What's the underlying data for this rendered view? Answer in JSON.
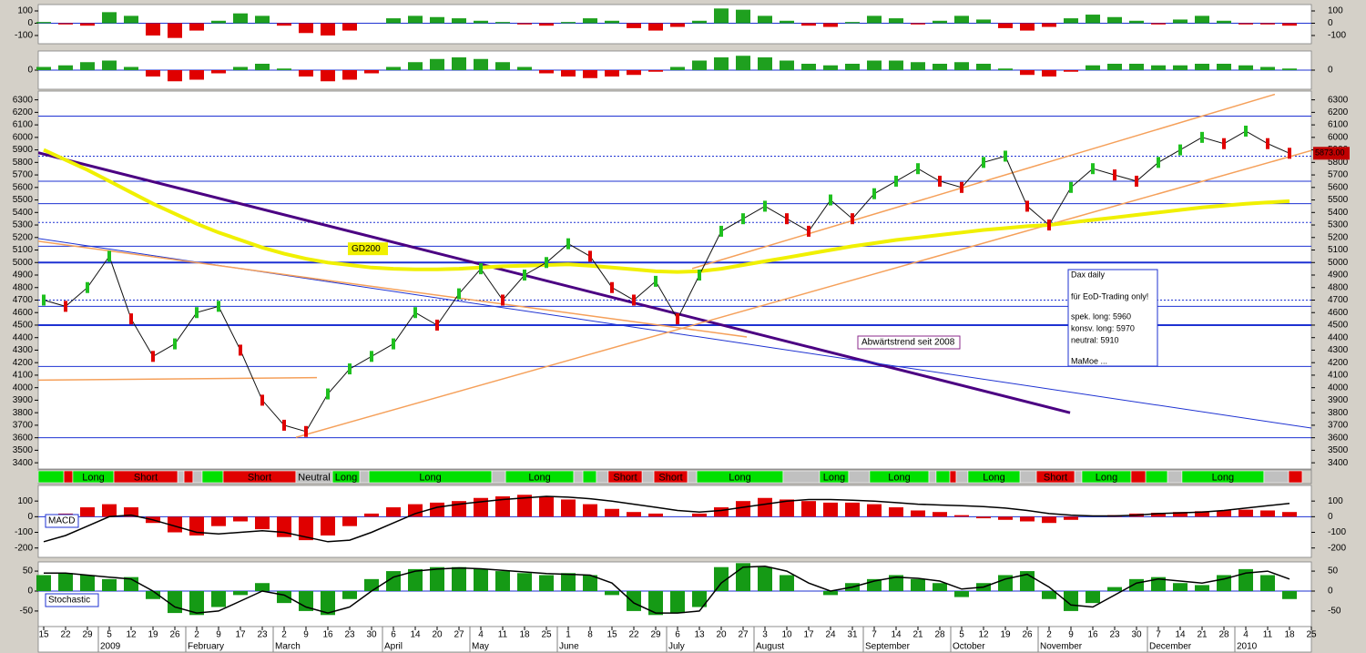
{
  "chart_data": [
    {
      "type": "bar",
      "ylim": [
        -167,
        152
      ],
      "yticks": [
        100,
        0,
        -100
      ],
      "values": [
        10,
        -10,
        -20,
        90,
        60,
        -100,
        -120,
        -60,
        20,
        80,
        60,
        -20,
        -80,
        -100,
        -60,
        0,
        40,
        60,
        50,
        40,
        20,
        10,
        -10,
        -20,
        10,
        40,
        20,
        -40,
        -60,
        -30,
        20,
        120,
        110,
        60,
        20,
        -20,
        -30,
        10,
        60,
        40,
        -10,
        20,
        60,
        30,
        -40,
        -60,
        -30,
        40,
        70,
        50,
        20,
        -10,
        30,
        60,
        20,
        -10,
        -10,
        -20,
        null
      ]
    },
    {
      "type": "bar",
      "ylim": [
        -60,
        60
      ],
      "yticks": [
        0
      ],
      "values": [
        10,
        15,
        25,
        30,
        10,
        -20,
        -35,
        -30,
        -10,
        10,
        20,
        5,
        -20,
        -35,
        -30,
        -10,
        10,
        25,
        35,
        40,
        35,
        25,
        10,
        -10,
        -20,
        -25,
        -20,
        -15,
        -5,
        10,
        30,
        40,
        45,
        40,
        30,
        20,
        15,
        20,
        30,
        30,
        25,
        20,
        25,
        20,
        5,
        -15,
        -20,
        -5,
        15,
        20,
        20,
        15,
        15,
        20,
        20,
        15,
        10,
        5,
        null
      ]
    },
    {
      "type": "line",
      "ylim": [
        3350,
        6370
      ],
      "yticks": [
        6300,
        6200,
        6100,
        6000,
        5900,
        5800,
        5700,
        5600,
        5500,
        5400,
        5300,
        5200,
        5100,
        5000,
        4900,
        4800,
        4700,
        4600,
        4500,
        4400,
        4300,
        4200,
        4100,
        4000,
        3900,
        3800,
        3700,
        3600,
        3500,
        3400
      ],
      "series": [
        {
          "color": "#111111",
          "values": [
            4700,
            4650,
            4800,
            5050,
            4550,
            4250,
            4350,
            4600,
            4650,
            4300,
            3900,
            3700,
            3650,
            3950,
            4150,
            4250,
            4350,
            4600,
            4500,
            4750,
            4950,
            4700,
            4900,
            5000,
            5150,
            5050,
            4800,
            4700,
            4850,
            4550,
            4900,
            5250,
            5350,
            5450,
            5350,
            5250,
            5500,
            5350,
            5550,
            5650,
            5750,
            5650,
            5600,
            5800,
            5850,
            5450,
            5300,
            5600,
            5750,
            5700,
            5650,
            5800,
            5900,
            6000,
            5950,
            6050,
            5950,
            5873,
            null
          ]
        },
        {
          "name": "GD200",
          "color": "#f0f000",
          "values": [
            5900,
            5820,
            5740,
            5650,
            5560,
            5470,
            5390,
            5310,
            5240,
            5180,
            5120,
            5070,
            5030,
            5000,
            4980,
            4960,
            4950,
            4945,
            4945,
            4950,
            4960,
            4970,
            4975,
            4980,
            4985,
            4975,
            4960,
            4945,
            4930,
            4925,
            4930,
            4950,
            4980,
            5010,
            5040,
            5070,
            5100,
            5130,
            5155,
            5180,
            5200,
            5220,
            5240,
            5260,
            5275,
            5290,
            5300,
            5320,
            5340,
            5360,
            5380,
            5400,
            5420,
            5440,
            5455,
            5470,
            5480,
            5490,
            null
          ]
        }
      ],
      "levels": [
        6170,
        5850,
        5650,
        5470,
        5320,
        5130,
        5000,
        4700,
        4650,
        4500,
        4170,
        3600
      ],
      "level_styles": [
        "solid",
        "dotted",
        "solid",
        "solid",
        "dotted",
        "solid",
        "thick",
        "dotted",
        "solid",
        "thick",
        "solid",
        "solid"
      ],
      "trendlines": [
        {
          "color": "#4b0082",
          "x": [
            -0.25,
            46.96
          ],
          "y": [
            5877,
            3800
          ]
        },
        {
          "color": "#1e32d2",
          "x": [
            -0.25,
            58.6
          ],
          "y": [
            5192,
            3662
          ]
        },
        {
          "color": "#f5a05a",
          "x": [
            11.54,
            58.83
          ],
          "y": [
            3603,
            5936
          ]
        },
        {
          "color": "#f5a05a",
          "x": [
            29.67,
            56.33
          ],
          "y": [
            4952,
            6344
          ]
        },
        {
          "color": "#f5a05a",
          "x": [
            -0.25,
            32.17
          ],
          "y": [
            5170,
            4405
          ]
        },
        {
          "color": "#f5a05a",
          "x": [
            -0.25,
            12.5
          ],
          "y": [
            4060,
            4080
          ]
        }
      ],
      "annotation": "Abwärtstrend seit 2008",
      "info_box": [
        "Dax daily",
        "für EoD-Trading only!",
        "spek. long: 5960",
        "konsv. long: 5970",
        "neutral: 5910",
        "MaMoe ..."
      ],
      "last_price": 5873,
      "last_price_label": "5873.00"
    },
    {
      "type": "signal",
      "starts": [
        -0.25,
        0.92,
        1.33,
        3.21,
        6.13,
        6.42,
        6.83,
        7.25,
        8.21,
        11.54,
        13.21,
        14.46,
        14.88,
        20.5,
        21.13,
        24.25,
        24.67,
        25.29,
        25.83,
        27.38,
        27.92,
        29.46,
        29.88,
        33.83,
        35.5,
        36.83,
        37.79,
        40.5,
        40.83,
        41.46,
        41.75,
        42.29,
        44.67,
        45.42,
        47.17,
        47.5,
        49.75,
        50.42,
        51.42,
        52.08,
        55.83,
        56.96
      ],
      "end": 57.58,
      "labels": [
        null,
        null,
        "Long",
        "Short",
        null,
        null,
        null,
        null,
        "Short",
        "Neutral",
        "Long",
        null,
        "Long",
        null,
        "Long",
        null,
        null,
        null,
        "Short",
        null,
        "Short",
        null,
        "Long",
        null,
        "Long",
        null,
        "Long",
        null,
        null,
        null,
        null,
        "Long",
        null,
        "Short",
        null,
        "Long",
        null,
        null,
        null,
        "Long",
        null,
        null
      ],
      "colors": [
        "#00e000",
        "#e00000",
        "#00e000",
        "#e00000",
        "#c0c0c0",
        "#e00000",
        "#c0c0c0",
        "#00e000",
        "#e00000",
        "#c0c0c0",
        "#00e000",
        "#c0c0c0",
        "#00e000",
        "#c0c0c0",
        "#00e000",
        "#c0c0c0",
        "#00e000",
        "#c0c0c0",
        "#e00000",
        "#c0c0c0",
        "#e00000",
        "#c0c0c0",
        "#00e000",
        "#c0c0c0",
        "#00e000",
        "#c0c0c0",
        "#00e000",
        "#c0c0c0",
        "#00e000",
        "#e00000",
        "#c0c0c0",
        "#00e000",
        "#c0c0c0",
        "#e00000",
        "#c0c0c0",
        "#00e000",
        "#e00000",
        "#00e000",
        "#c0c0c0",
        "#00e000",
        "#c0c0c0",
        "#e00000"
      ]
    },
    {
      "type": "bar",
      "title": "MACD",
      "ylim": [
        -260,
        200
      ],
      "yticks": [
        100,
        0,
        -100,
        -200
      ],
      "series": [
        {
          "color": "#e00000",
          "style": "bar",
          "values": [
            0,
            20,
            60,
            80,
            60,
            -40,
            -100,
            -120,
            -60,
            -30,
            -80,
            -130,
            -150,
            -120,
            -60,
            20,
            60,
            80,
            90,
            100,
            120,
            130,
            140,
            130,
            110,
            80,
            50,
            30,
            20,
            0,
            20,
            60,
            100,
            120,
            110,
            100,
            90,
            90,
            80,
            60,
            40,
            30,
            10,
            -10,
            -20,
            -30,
            -40,
            -20,
            0,
            10,
            20,
            25,
            30,
            35,
            40,
            45,
            40,
            30,
            null
          ]
        },
        {
          "color": "#000000",
          "style": "line",
          "values": [
            -160,
            -120,
            -60,
            0,
            10,
            -20,
            -60,
            -100,
            -110,
            -100,
            -90,
            -100,
            -130,
            -160,
            -150,
            -100,
            -40,
            20,
            60,
            80,
            95,
            110,
            120,
            130,
            125,
            115,
            100,
            80,
            60,
            40,
            30,
            40,
            60,
            80,
            100,
            110,
            110,
            105,
            100,
            90,
            80,
            75,
            70,
            65,
            55,
            40,
            20,
            10,
            5,
            5,
            10,
            20,
            25,
            30,
            40,
            55,
            70,
            85,
            null
          ]
        }
      ]
    },
    {
      "type": "bar",
      "title": "Stochastic",
      "ylim": [
        -89,
        73
      ],
      "yticks": [
        50,
        0,
        -50
      ],
      "series": [
        {
          "color": "#159a15",
          "style": "bar",
          "values": [
            40,
            45,
            40,
            30,
            35,
            -20,
            -55,
            -60,
            -40,
            -10,
            20,
            -30,
            -50,
            -60,
            -20,
            30,
            50,
            55,
            60,
            60,
            55,
            50,
            45,
            40,
            45,
            40,
            -10,
            -50,
            -60,
            -55,
            -40,
            60,
            70,
            60,
            40,
            0,
            -10,
            20,
            30,
            40,
            30,
            20,
            -15,
            20,
            40,
            50,
            -20,
            -50,
            -30,
            10,
            30,
            35,
            20,
            15,
            40,
            55,
            40,
            -20,
            null
          ]
        },
        {
          "color": "#000000",
          "style": "line",
          "values": [
            45,
            45,
            40,
            35,
            30,
            0,
            -40,
            -55,
            -50,
            -25,
            0,
            -10,
            -40,
            -55,
            -40,
            0,
            35,
            50,
            55,
            58,
            56,
            52,
            48,
            44,
            42,
            40,
            20,
            -30,
            -55,
            -55,
            -50,
            20,
            60,
            62,
            50,
            20,
            0,
            10,
            25,
            35,
            32,
            25,
            5,
            10,
            30,
            42,
            10,
            -35,
            -40,
            -10,
            20,
            30,
            25,
            20,
            30,
            45,
            50,
            30,
            null
          ]
        }
      ],
      "categories": [
        15,
        22,
        29,
        5,
        12,
        19,
        26,
        2,
        9,
        17,
        23,
        2,
        9,
        16,
        23,
        30,
        6,
        14,
        20,
        27,
        4,
        11,
        18,
        25,
        1,
        8,
        15,
        22,
        29,
        6,
        13,
        20,
        27,
        3,
        10,
        17,
        24,
        31,
        7,
        14,
        21,
        28,
        5,
        12,
        19,
        26,
        2,
        9,
        16,
        23,
        30,
        7,
        14,
        21,
        28,
        4,
        11,
        18,
        25
      ],
      "months": [
        null,
        null,
        null,
        "2009",
        null,
        null,
        null,
        "February",
        null,
        null,
        null,
        "March",
        null,
        null,
        null,
        null,
        "April",
        null,
        null,
        null,
        "May",
        null,
        null,
        null,
        "June",
        null,
        null,
        null,
        null,
        "July",
        null,
        null,
        null,
        "August",
        null,
        null,
        null,
        null,
        "September",
        null,
        null,
        null,
        "October",
        null,
        null,
        null,
        "November",
        null,
        null,
        null,
        null,
        "December",
        null,
        null,
        null,
        "2010",
        null,
        null,
        null
      ]
    }
  ]
}
